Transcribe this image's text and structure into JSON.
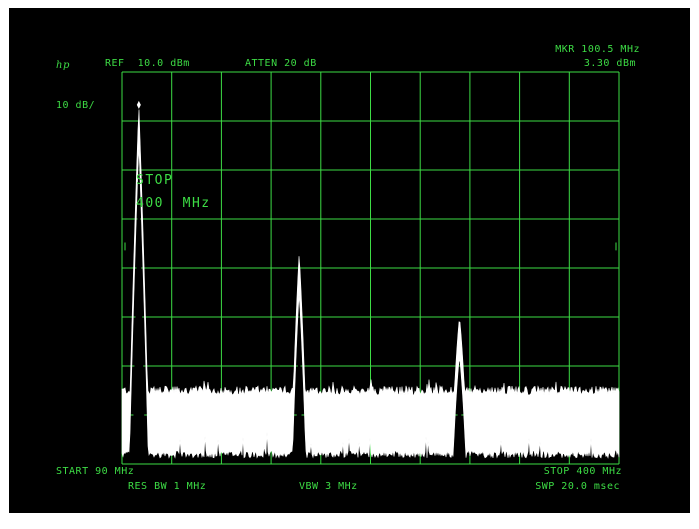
{
  "header": {
    "logo": "hp",
    "ref": "REF  10.0 dBm",
    "atten": "ATTEN 20 dB",
    "marker_freq": "MKR 100.5 MHz",
    "marker_level": "3.30 dBm",
    "scale": "10 dB/"
  },
  "overlay": {
    "line1": "STOP",
    "line2": "400  MHz"
  },
  "footer": {
    "start": "START 90 MHz",
    "stop": "STOP 400 MHz",
    "res_bw": "RES BW 1 MHz",
    "vbw": "VBW 3 MHz",
    "sweep": "SWP 20.0 msec"
  },
  "colors": {
    "grid": "#3ddc45",
    "trace": "#ffffff",
    "background": "#000000"
  },
  "chart_data": {
    "type": "line",
    "x_unit": "MHz",
    "y_unit": "dBm",
    "xlim": [
      90,
      400
    ],
    "ylim": [
      -70,
      10
    ],
    "grid": true,
    "noise_floor_range": [
      -68,
      -55
    ],
    "peaks": [
      {
        "freq": 100.5,
        "level": 3.3
      },
      {
        "freq": 200.5,
        "level": -27
      },
      {
        "freq": 300.5,
        "level": -40
      }
    ]
  }
}
